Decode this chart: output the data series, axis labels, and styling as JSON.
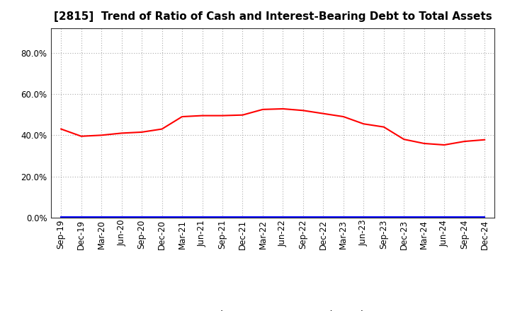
{
  "title": "[2815]  Trend of Ratio of Cash and Interest-Bearing Debt to Total Assets",
  "x_labels": [
    "Sep-19",
    "Dec-19",
    "Mar-20",
    "Jun-20",
    "Sep-20",
    "Dec-20",
    "Mar-21",
    "Jun-21",
    "Sep-21",
    "Dec-21",
    "Mar-22",
    "Jun-22",
    "Sep-22",
    "Dec-22",
    "Mar-23",
    "Jun-23",
    "Sep-23",
    "Dec-23",
    "Mar-24",
    "Jun-24",
    "Sep-24",
    "Dec-24"
  ],
  "cash_values": [
    0.43,
    0.395,
    0.4,
    0.41,
    0.415,
    0.43,
    0.49,
    0.495,
    0.495,
    0.498,
    0.525,
    0.528,
    0.52,
    0.505,
    0.49,
    0.455,
    0.44,
    0.38,
    0.36,
    0.353,
    0.37,
    0.378
  ],
  "debt_values": [
    0.003,
    0.003,
    0.003,
    0.003,
    0.003,
    0.003,
    0.003,
    0.003,
    0.003,
    0.003,
    0.003,
    0.003,
    0.003,
    0.003,
    0.003,
    0.003,
    0.003,
    0.003,
    0.003,
    0.003,
    0.003,
    0.003
  ],
  "cash_color": "#FF0000",
  "debt_color": "#0000FF",
  "ylim": [
    0.0,
    0.92
  ],
  "yticks": [
    0.0,
    0.2,
    0.4,
    0.6,
    0.8
  ],
  "grid_color": "#aaaaaa",
  "title_fontsize": 11,
  "tick_fontsize": 8.5,
  "legend_cash": "Cash",
  "legend_debt": "Interest-Bearing Debt",
  "background_color": "#FFFFFF",
  "spine_color": "#333333"
}
